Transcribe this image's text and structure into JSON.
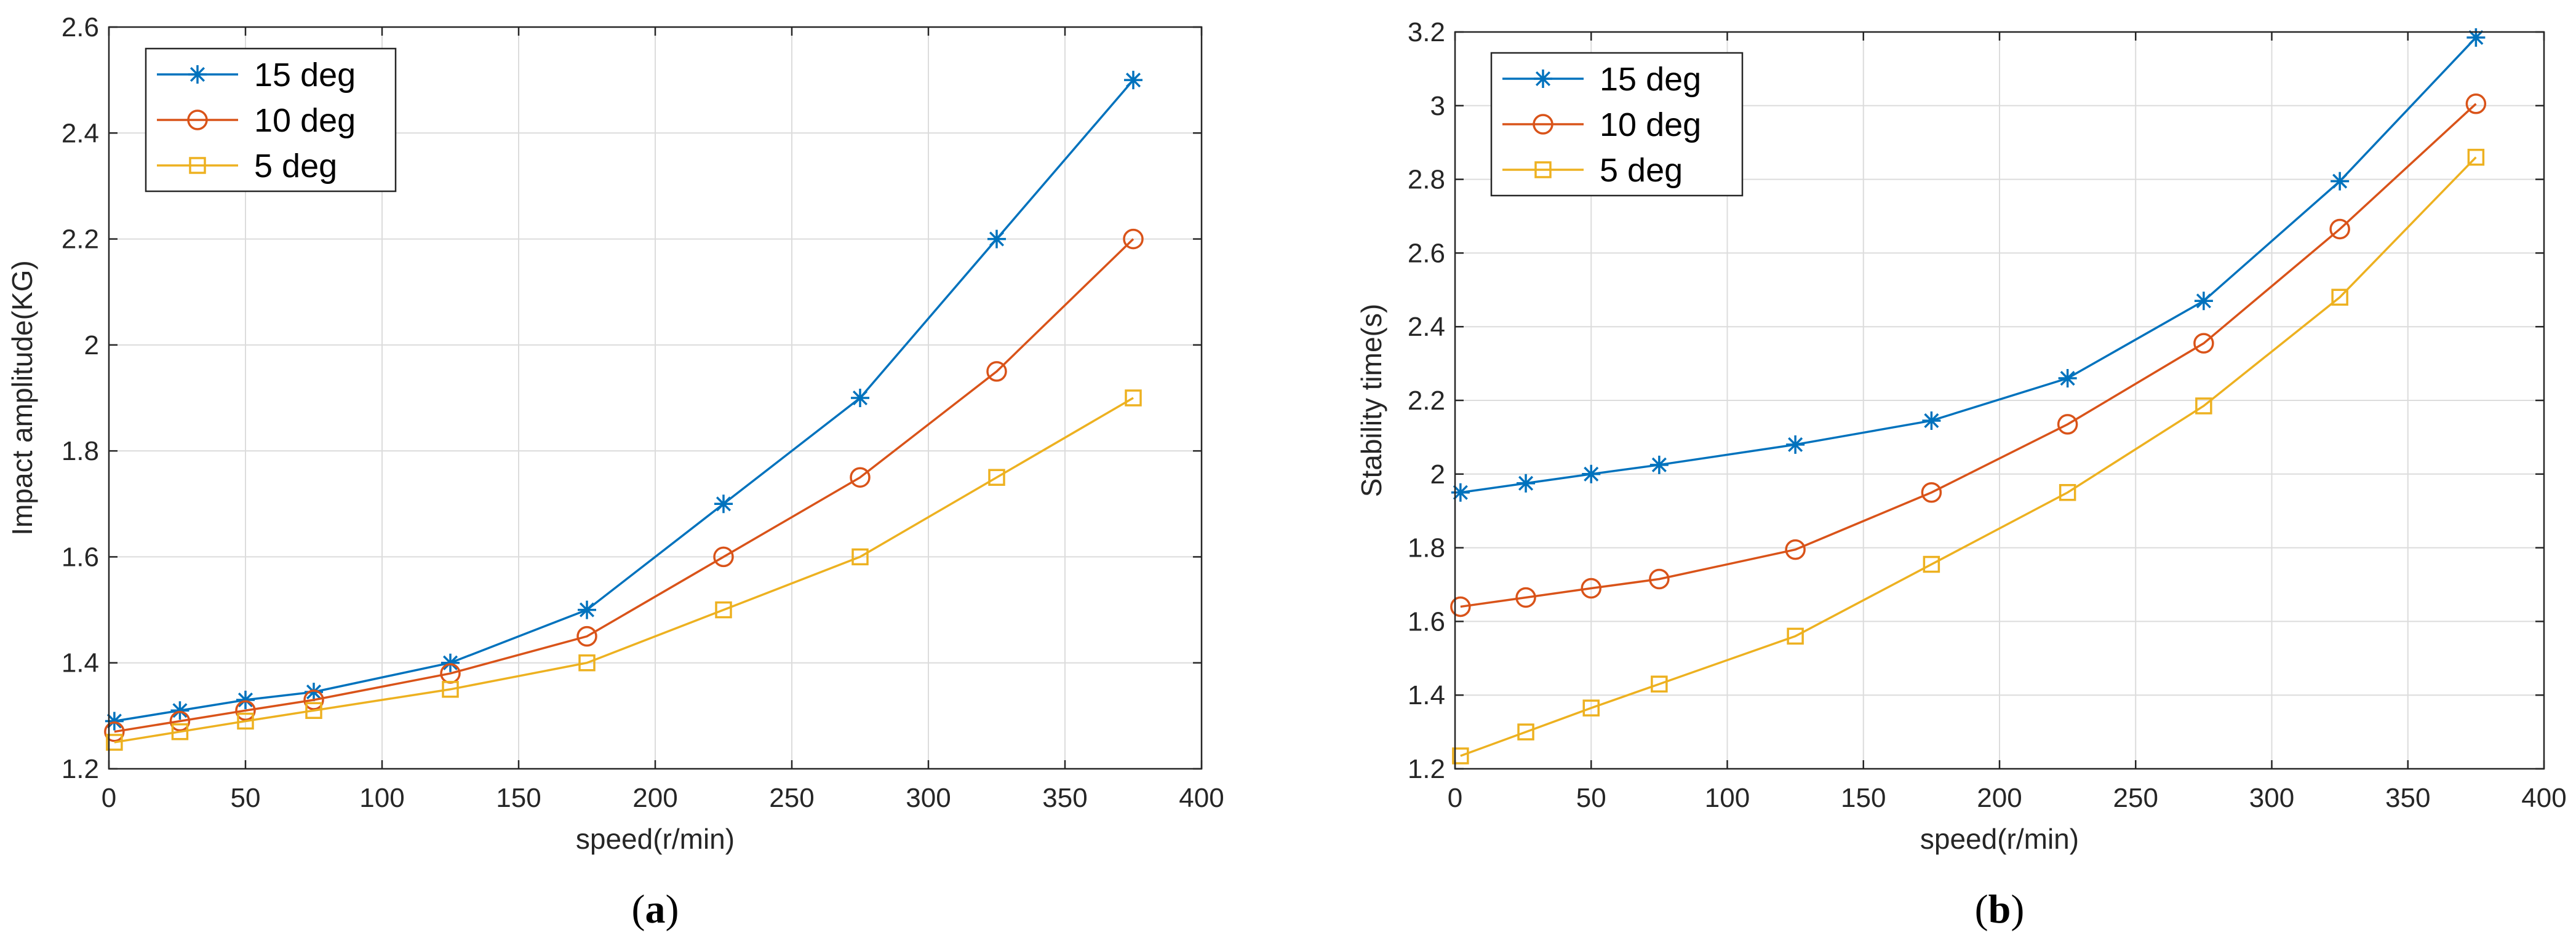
{
  "chart_data": [
    {
      "type": "line",
      "caption": {
        "open": "(",
        "letter": "a",
        "close": ")"
      },
      "xlabel": "speed(r/min)",
      "ylabel": "Impact amplitude(KG)",
      "xlim": [
        0,
        400
      ],
      "ylim": [
        1.2,
        2.6
      ],
      "xticks": [
        0,
        50,
        100,
        150,
        200,
        250,
        300,
        350,
        400
      ],
      "xtick_labels": [
        "0",
        "50",
        "100",
        "150",
        "200",
        "250",
        "300",
        "350",
        "400"
      ],
      "yticks": [
        1.2,
        1.4,
        1.6,
        1.8,
        2.0,
        2.2,
        2.4,
        2.6
      ],
      "ytick_labels": [
        "1.2",
        "1.4",
        "1.6",
        "1.8",
        "2",
        "2.2",
        "2.4",
        "2.6"
      ],
      "grid": true,
      "legend_position": "top-left",
      "x": [
        2,
        26,
        50,
        75,
        125,
        175,
        225,
        275,
        325,
        375
      ],
      "series": [
        {
          "name": "15 deg",
          "color": "#0072BD",
          "marker": "asterisk",
          "values": [
            1.29,
            1.31,
            1.33,
            1.345,
            1.4,
            1.5,
            1.7,
            1.9,
            2.2,
            2.5
          ]
        },
        {
          "name": "10 deg",
          "color": "#D95319",
          "marker": "circle",
          "values": [
            1.27,
            1.29,
            1.31,
            1.33,
            1.38,
            1.45,
            1.6,
            1.75,
            1.95,
            2.2
          ]
        },
        {
          "name": "5 deg",
          "color": "#EDB120",
          "marker": "square",
          "values": [
            1.25,
            1.27,
            1.29,
            1.31,
            1.35,
            1.4,
            1.5,
            1.6,
            1.75,
            1.9
          ]
        }
      ]
    },
    {
      "type": "line",
      "caption": {
        "open": "(",
        "letter": "b",
        "close": ")"
      },
      "xlabel": "speed(r/min)",
      "ylabel": "Stability time(s)",
      "xlim": [
        0,
        400
      ],
      "ylim": [
        1.2,
        3.2
      ],
      "xticks": [
        0,
        50,
        100,
        150,
        200,
        250,
        300,
        350,
        400
      ],
      "xtick_labels": [
        "0",
        "50",
        "100",
        "150",
        "200",
        "250",
        "300",
        "350",
        "400"
      ],
      "yticks": [
        1.2,
        1.4,
        1.6,
        1.8,
        2.0,
        2.2,
        2.4,
        2.6,
        2.8,
        3.0,
        3.2
      ],
      "ytick_labels": [
        "1.2",
        "1.4",
        "1.6",
        "1.8",
        "2",
        "2.2",
        "2.4",
        "2.6",
        "2.8",
        "3",
        "3.2"
      ],
      "grid": true,
      "legend_position": "top-left",
      "x": [
        2,
        26,
        50,
        75,
        125,
        175,
        225,
        275,
        325,
        375
      ],
      "series": [
        {
          "name": "15 deg",
          "color": "#0072BD",
          "marker": "asterisk",
          "values": [
            1.95,
            1.975,
            2.0,
            2.025,
            2.08,
            2.145,
            2.26,
            2.47,
            2.795,
            3.185
          ]
        },
        {
          "name": "10 deg",
          "color": "#D95319",
          "marker": "circle",
          "values": [
            1.64,
            1.665,
            1.69,
            1.715,
            1.795,
            1.95,
            2.135,
            2.355,
            2.665,
            3.005
          ]
        },
        {
          "name": "5 deg",
          "color": "#EDB120",
          "marker": "square",
          "values": [
            1.235,
            1.3,
            1.365,
            1.43,
            1.56,
            1.755,
            1.95,
            2.185,
            2.48,
            2.86
          ]
        }
      ]
    }
  ]
}
